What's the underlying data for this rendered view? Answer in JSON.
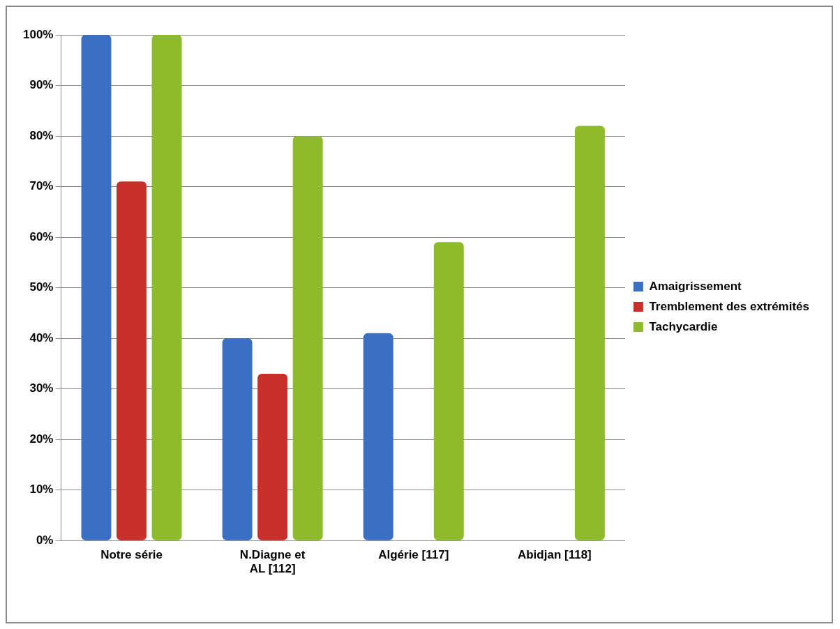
{
  "chart_data": {
    "type": "bar",
    "categories": [
      "Notre série",
      "N.Diagne et AL [112]",
      "Algérie [117]",
      "Abidjan [118]"
    ],
    "series": [
      {
        "name": "Amaigrissement",
        "color": "#3a6fc4",
        "values": [
          100,
          40,
          41,
          null
        ]
      },
      {
        "name": "Tremblement des extrémités",
        "color": "#c9302c",
        "values": [
          71,
          33,
          null,
          null
        ]
      },
      {
        "name": "Tachycardie",
        "color": "#8dbb2b",
        "values": [
          100,
          80,
          59,
          82
        ]
      }
    ],
    "ylim": [
      0,
      100
    ],
    "yticks": [
      {
        "value": 0,
        "label": "0%"
      },
      {
        "value": 10,
        "label": "10%"
      },
      {
        "value": 20,
        "label": "20%"
      },
      {
        "value": 30,
        "label": "30%"
      },
      {
        "value": 40,
        "label": "40%"
      },
      {
        "value": 50,
        "label": "50%"
      },
      {
        "value": 60,
        "label": "60%"
      },
      {
        "value": 70,
        "label": "70%"
      },
      {
        "value": 80,
        "label": "80%"
      },
      {
        "value": 90,
        "label": "90%"
      },
      {
        "value": 100,
        "label": "100%"
      }
    ],
    "grid": "y",
    "legend": "right"
  }
}
